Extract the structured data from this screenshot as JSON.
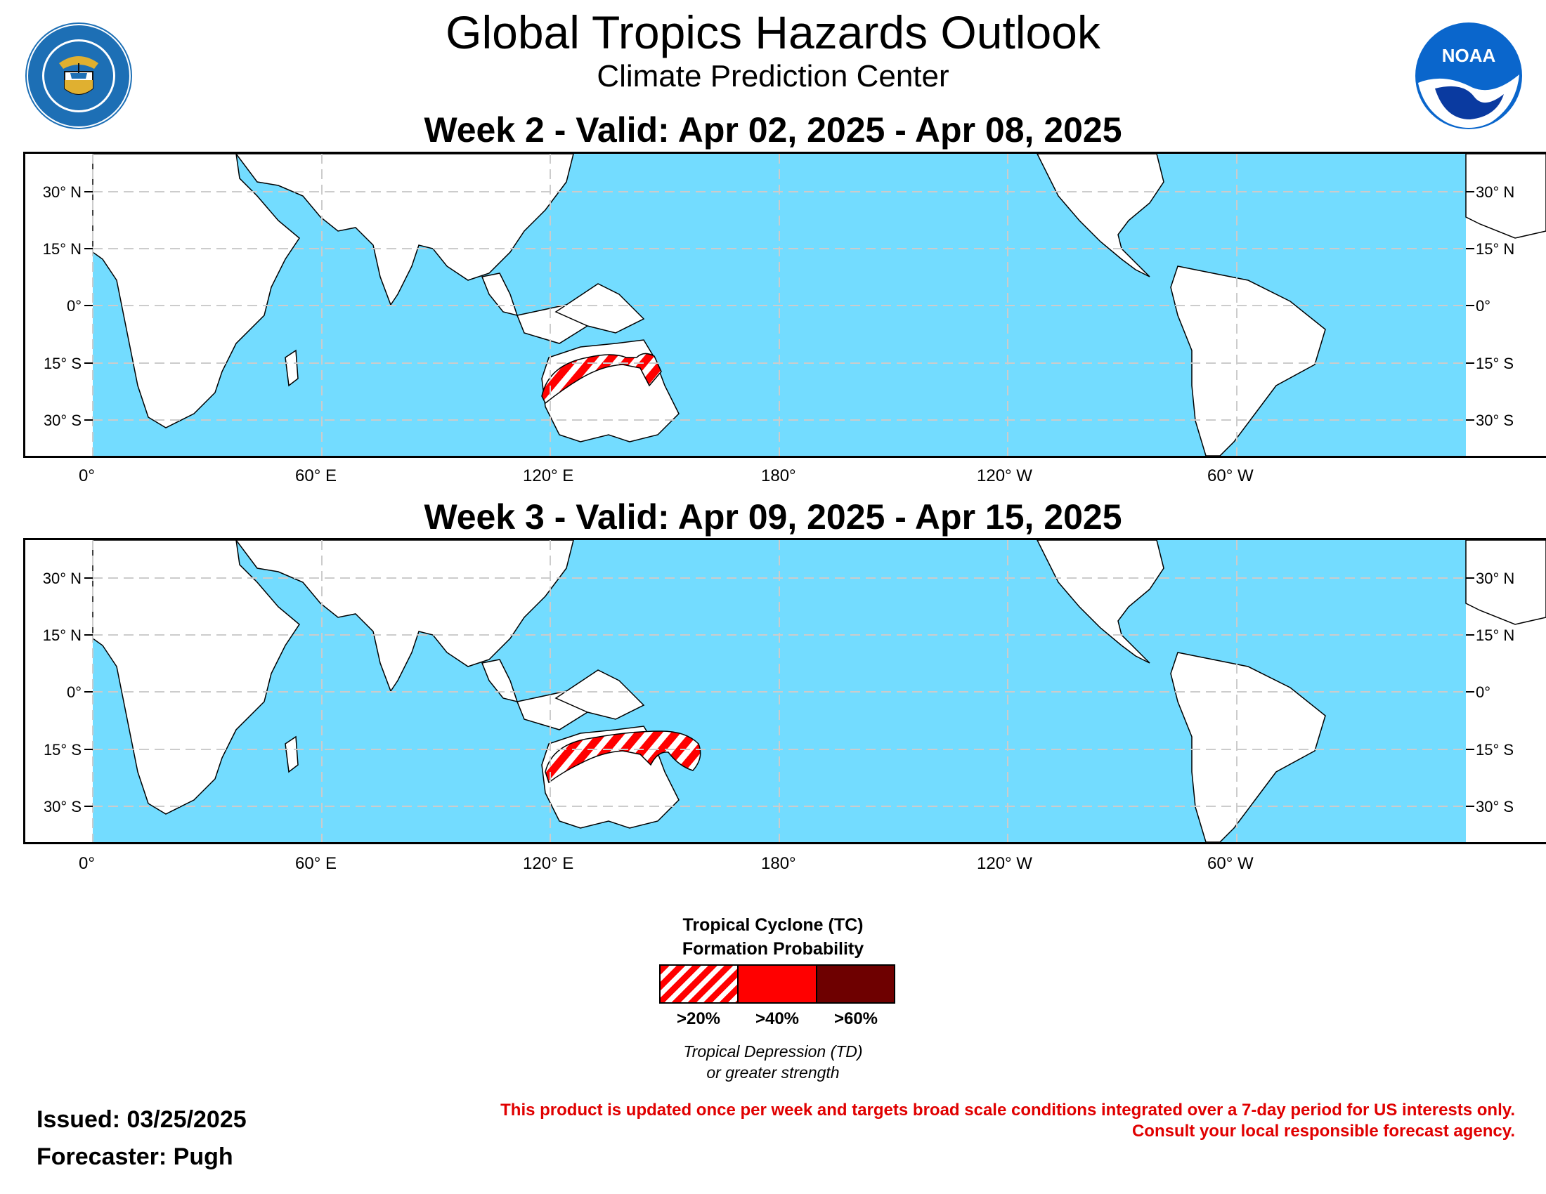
{
  "header": {
    "title": "Global Tropics Hazards Outlook",
    "subtitle": "Climate Prediction Center",
    "logo_left": "DEPARTMENT OF COMMERCE · UNITED STATES OF AMERICA",
    "logo_right": "NOAA"
  },
  "maps": [
    {
      "title": "Week 2 - Valid: Apr 02, 2025 - Apr 08, 2025",
      "lat_labels_left": [
        "30° N",
        "15° N",
        "0°",
        "15° S",
        "30° S"
      ],
      "lat_labels_right": [
        "30° N",
        "15° N",
        "0°",
        "15° S",
        "30° S"
      ],
      "lon_labels": [
        "0°",
        "60° E",
        "120° E",
        "180°",
        "120° W",
        "60° W"
      ],
      "hazards": [
        {
          "category": ">20%",
          "region": "NW and N Australia coast / Timor Sea / Gulf of Carpentaria"
        }
      ]
    },
    {
      "title": "Week 3 - Valid: Apr 09, 2025 - Apr 15, 2025",
      "lat_labels_left": [
        "30° N",
        "15° N",
        "0°",
        "15° S",
        "30° S"
      ],
      "lat_labels_right": [
        "30° N",
        "15° N",
        "0°",
        "15° S",
        "30° S"
      ],
      "lon_labels": [
        "0°",
        "60° E",
        "120° E",
        "180°",
        "120° W",
        "60° W"
      ],
      "hazards": [
        {
          "category": ">20%",
          "region": "NW and N Australia coast / Gulf of Carpentaria / Coral Sea"
        }
      ]
    }
  ],
  "legend": {
    "title_line1": "Tropical Cyclone (TC)",
    "title_line2": "Formation Probability",
    "categories": [
      {
        "label": ">20%",
        "color": "#ff0000",
        "style": "hatched"
      },
      {
        "label": ">40%",
        "color": "#ff0000",
        "style": "solid"
      },
      {
        "label": ">60%",
        "color": "#6e0000",
        "style": "solid"
      }
    ],
    "note_line1": "Tropical Depression (TD)",
    "note_line2": "or greater strength"
  },
  "footer": {
    "issued": "Issued: 03/25/2025",
    "forecaster": "Forecaster: Pugh",
    "disclaimer_line1": "This product is updated once per week and targets broad scale conditions integrated over a 7-day period for US interests only.",
    "disclaimer_line2": "Consult your local responsible forecast agency."
  },
  "colors": {
    "ocean": "#73dcff",
    "land": "#ffffff",
    "hazard": "#ff0000",
    "disclaimer": "#e00000"
  }
}
